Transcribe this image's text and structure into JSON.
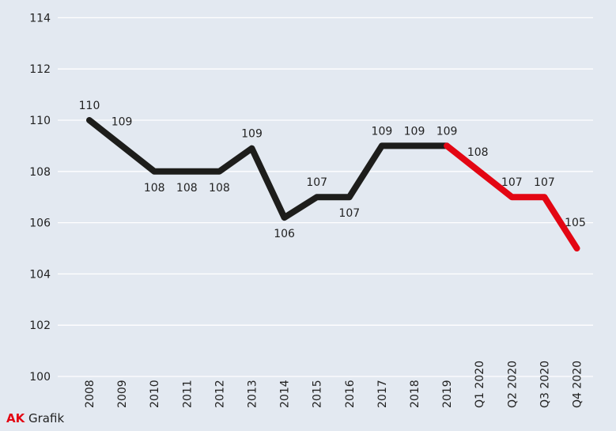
{
  "chart_data": {
    "type": "line",
    "title": "",
    "xlabel": "",
    "ylabel": "",
    "ylim": [
      100,
      114
    ],
    "yticks": [
      "100",
      "102",
      "104",
      "106",
      "108",
      "110",
      "112",
      "114"
    ],
    "grid": true,
    "categories": [
      "2008",
      "2009",
      "2010",
      "2011",
      "2012",
      "2013",
      "2014",
      "2015",
      "2016",
      "2017",
      "2018",
      "2019",
      "Q1 2020",
      "Q2 2020",
      "Q3 2020",
      "Q4 2020"
    ],
    "values": [
      110,
      109,
      108,
      108,
      108,
      108.9,
      106.2,
      107,
      107,
      109,
      109,
      109,
      108,
      107,
      107,
      105
    ],
    "labels": [
      "110",
      "109",
      "108",
      "108",
      "108",
      "109",
      "106",
      "107",
      "107",
      "109",
      "109",
      "109",
      "108",
      "107",
      "107",
      "105"
    ],
    "series_colors": {
      "annual": "#1d1d1b",
      "quarterly": "#e30613"
    }
  },
  "brand": {
    "ak": "AK",
    "grafik": "Grafik"
  }
}
